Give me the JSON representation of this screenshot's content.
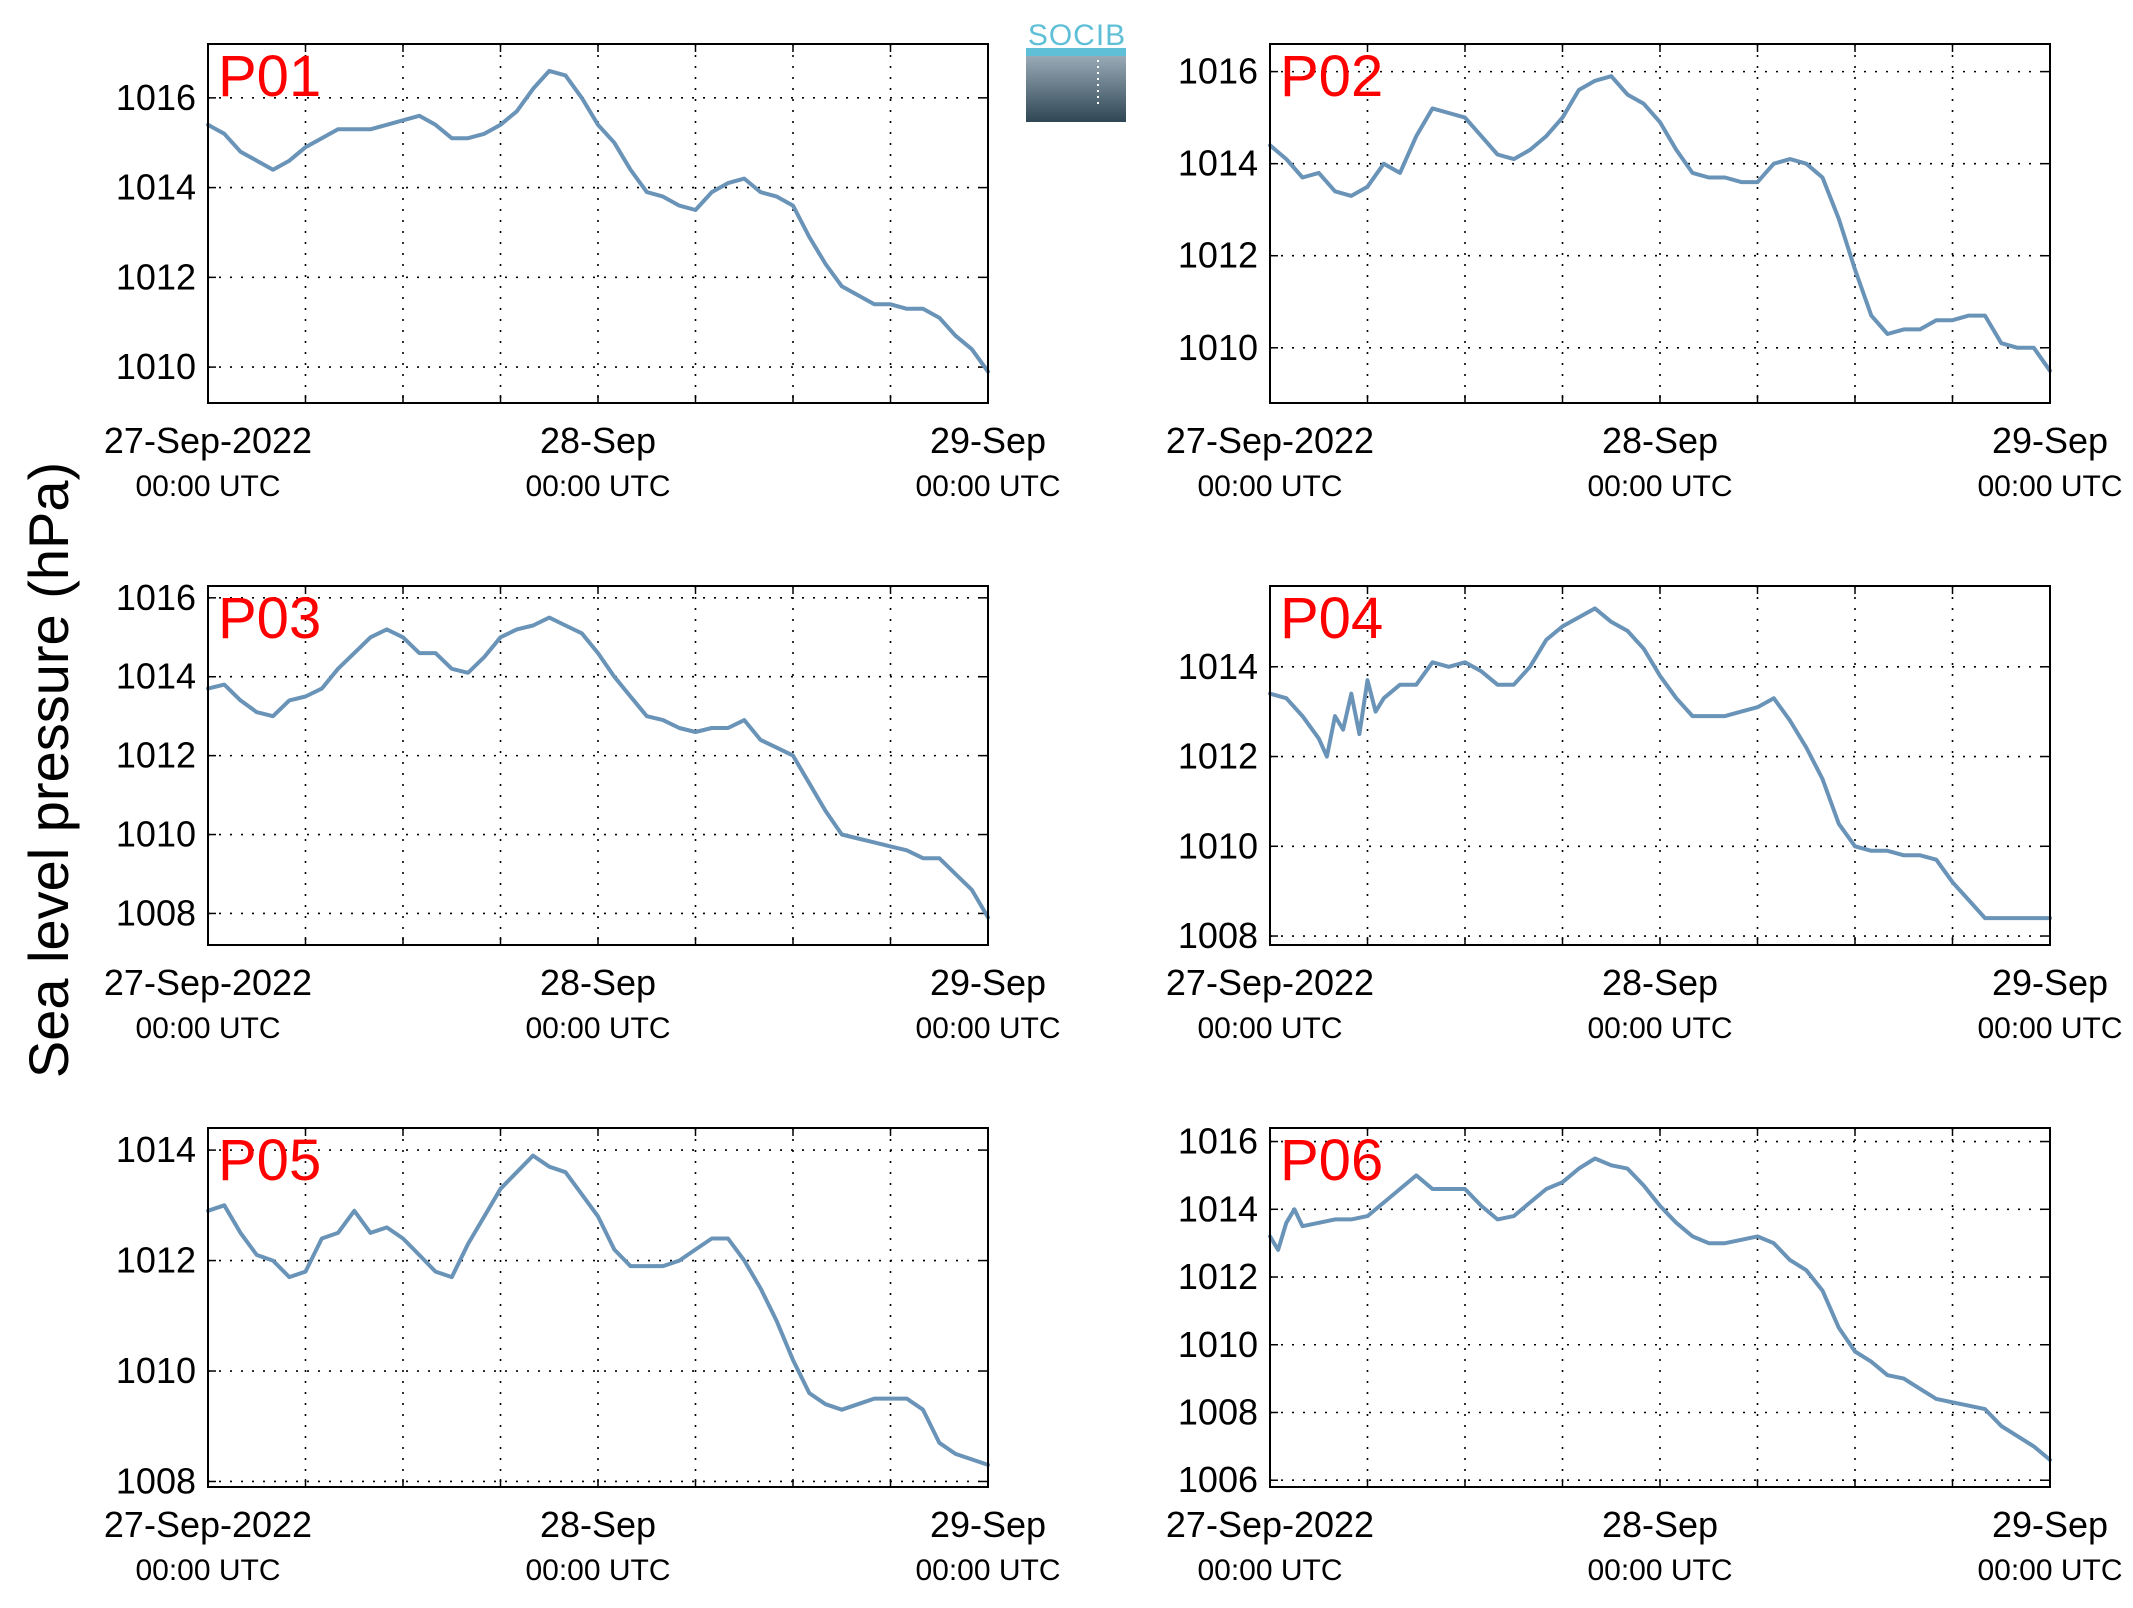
{
  "figure": {
    "ylabel": "Sea level pressure (hPa)",
    "logo_text": "SOCIB",
    "line_color": "#6a93b8",
    "label_color": "#ff0000"
  },
  "chart_data": [
    {
      "type": "line",
      "name": "P01",
      "x_ticks": [
        {
          "label": "27-Sep-2022",
          "sub": "00:00 UTC"
        },
        {
          "label": "28-Sep",
          "sub": "00:00 UTC"
        },
        {
          "label": "29-Sep",
          "sub": "00:00 UTC"
        }
      ],
      "xlim_hours": [
        0,
        48
      ],
      "ylim": [
        1009.2,
        1017.2
      ],
      "yticks": [
        1010,
        1012,
        1014,
        1016
      ],
      "grid": true,
      "x": [
        0,
        1,
        2,
        3,
        4,
        5,
        6,
        7,
        8,
        9,
        10,
        11,
        12,
        13,
        14,
        15,
        16,
        17,
        18,
        19,
        20,
        21,
        22,
        23,
        24,
        25,
        26,
        27,
        28,
        29,
        30,
        31,
        32,
        33,
        34,
        35,
        36,
        37,
        38,
        39,
        40,
        41,
        42,
        43,
        44,
        45,
        46,
        47,
        48
      ],
      "values": [
        1015.4,
        1015.2,
        1014.8,
        1014.6,
        1014.4,
        1014.6,
        1014.9,
        1015.1,
        1015.3,
        1015.3,
        1015.3,
        1015.4,
        1015.5,
        1015.6,
        1015.4,
        1015.1,
        1015.1,
        1015.2,
        1015.4,
        1015.7,
        1016.2,
        1016.6,
        1016.5,
        1016.0,
        1015.4,
        1015.0,
        1014.4,
        1013.9,
        1013.8,
        1013.6,
        1013.5,
        1013.9,
        1014.1,
        1014.2,
        1013.9,
        1013.8,
        1013.6,
        1012.9,
        1012.3,
        1011.8,
        1011.6,
        1011.4,
        1011.4,
        1011.3,
        1011.3,
        1011.1,
        1010.7,
        1010.4,
        1009.9
      ]
    },
    {
      "type": "line",
      "name": "P02",
      "x_ticks": [
        {
          "label": "27-Sep-2022",
          "sub": "00:00 UTC"
        },
        {
          "label": "28-Sep",
          "sub": "00:00 UTC"
        },
        {
          "label": "29-Sep",
          "sub": "00:00 UTC"
        }
      ],
      "xlim_hours": [
        0,
        48
      ],
      "ylim": [
        1008.8,
        1016.6
      ],
      "yticks": [
        1010,
        1012,
        1014,
        1016
      ],
      "grid": true,
      "x": [
        0,
        1,
        2,
        3,
        4,
        5,
        6,
        7,
        8,
        9,
        10,
        11,
        12,
        13,
        14,
        15,
        16,
        17,
        18,
        19,
        20,
        21,
        22,
        23,
        24,
        25,
        26,
        27,
        28,
        29,
        30,
        31,
        32,
        33,
        34,
        35,
        36,
        37,
        38,
        39,
        40,
        41,
        42,
        43,
        44,
        45,
        46,
        47,
        48
      ],
      "values": [
        1014.4,
        1014.1,
        1013.7,
        1013.8,
        1013.4,
        1013.3,
        1013.5,
        1014.0,
        1013.8,
        1014.6,
        1015.2,
        1015.1,
        1015.0,
        1014.6,
        1014.2,
        1014.1,
        1014.3,
        1014.6,
        1015.0,
        1015.6,
        1015.8,
        1015.9,
        1015.5,
        1015.3,
        1014.9,
        1014.3,
        1013.8,
        1013.7,
        1013.7,
        1013.6,
        1013.6,
        1014.0,
        1014.1,
        1014.0,
        1013.7,
        1012.8,
        1011.7,
        1010.7,
        1010.3,
        1010.4,
        1010.4,
        1010.6,
        1010.6,
        1010.7,
        1010.7,
        1010.1,
        1010.0,
        1010.0,
        1009.5
      ]
    },
    {
      "type": "line",
      "name": "P03",
      "x_ticks": [
        {
          "label": "27-Sep-2022",
          "sub": "00:00 UTC"
        },
        {
          "label": "28-Sep",
          "sub": "00:00 UTC"
        },
        {
          "label": "29-Sep",
          "sub": "00:00 UTC"
        }
      ],
      "xlim_hours": [
        0,
        48
      ],
      "ylim": [
        1007.2,
        1016.3
      ],
      "yticks": [
        1008,
        1010,
        1012,
        1014,
        1016
      ],
      "grid": true,
      "x": [
        0,
        1,
        2,
        3,
        4,
        5,
        6,
        7,
        8,
        9,
        10,
        11,
        12,
        13,
        14,
        15,
        16,
        17,
        18,
        19,
        20,
        21,
        22,
        23,
        24,
        25,
        26,
        27,
        28,
        29,
        30,
        31,
        32,
        33,
        34,
        35,
        36,
        37,
        38,
        39,
        40,
        41,
        42,
        43,
        44,
        45,
        46,
        47,
        48
      ],
      "values": [
        1013.7,
        1013.8,
        1013.4,
        1013.1,
        1013.0,
        1013.4,
        1013.5,
        1013.7,
        1014.2,
        1014.6,
        1015.0,
        1015.2,
        1015.0,
        1014.6,
        1014.6,
        1014.2,
        1014.1,
        1014.5,
        1015.0,
        1015.2,
        1015.3,
        1015.5,
        1015.3,
        1015.1,
        1014.6,
        1014.0,
        1013.5,
        1013.0,
        1012.9,
        1012.7,
        1012.6,
        1012.7,
        1012.7,
        1012.9,
        1012.4,
        1012.2,
        1012.0,
        1011.3,
        1010.6,
        1010.0,
        1009.9,
        1009.8,
        1009.7,
        1009.6,
        1009.4,
        1009.4,
        1009.0,
        1008.6,
        1007.9
      ]
    },
    {
      "type": "line",
      "name": "P04",
      "x_ticks": [
        {
          "label": "27-Sep-2022",
          "sub": "00:00 UTC"
        },
        {
          "label": "28-Sep",
          "sub": "00:00 UTC"
        },
        {
          "label": "29-Sep",
          "sub": "00:00 UTC"
        }
      ],
      "xlim_hours": [
        0,
        48
      ],
      "ylim": [
        1007.8,
        1015.8
      ],
      "yticks": [
        1008,
        1010,
        1012,
        1014
      ],
      "grid": true,
      "x": [
        0,
        1,
        2,
        3,
        3.5,
        4,
        4.5,
        5,
        5.5,
        6,
        6.5,
        7,
        8,
        9,
        10,
        11,
        12,
        13,
        14,
        15,
        16,
        17,
        18,
        19,
        20,
        21,
        22,
        23,
        24,
        25,
        26,
        27,
        28,
        29,
        30,
        31,
        32,
        33,
        34,
        35,
        36,
        37,
        38,
        39,
        40,
        41,
        42,
        43,
        44,
        45,
        46,
        47,
        48
      ],
      "values": [
        1013.4,
        1013.3,
        1012.9,
        1012.4,
        1012.0,
        1012.9,
        1012.6,
        1013.4,
        1012.5,
        1013.7,
        1013.0,
        1013.3,
        1013.6,
        1013.6,
        1014.1,
        1014.0,
        1014.1,
        1013.9,
        1013.6,
        1013.6,
        1014.0,
        1014.6,
        1014.9,
        1015.1,
        1015.3,
        1015.0,
        1014.8,
        1014.4,
        1013.8,
        1013.3,
        1012.9,
        1012.9,
        1012.9,
        1013.0,
        1013.1,
        1013.3,
        1012.8,
        1012.2,
        1011.5,
        1010.5,
        1010.0,
        1009.9,
        1009.9,
        1009.8,
        1009.8,
        1009.7,
        1009.2,
        1008.8,
        1008.4,
        1008.4,
        1008.4,
        1008.4,
        1008.4
      ]
    },
    {
      "type": "line",
      "name": "P05",
      "x_ticks": [
        {
          "label": "27-Sep-2022",
          "sub": "00:00 UTC"
        },
        {
          "label": "28-Sep",
          "sub": "00:00 UTC"
        },
        {
          "label": "29-Sep",
          "sub": "00:00 UTC"
        }
      ],
      "xlim_hours": [
        0,
        48
      ],
      "ylim": [
        1007.9,
        1014.4
      ],
      "yticks": [
        1008,
        1010,
        1012,
        1014
      ],
      "grid": true,
      "x": [
        0,
        1,
        2,
        3,
        4,
        5,
        6,
        7,
        8,
        9,
        10,
        11,
        12,
        13,
        14,
        15,
        16,
        17,
        18,
        19,
        20,
        21,
        22,
        23,
        24,
        25,
        26,
        27,
        28,
        29,
        30,
        31,
        32,
        33,
        34,
        35,
        36,
        37,
        38,
        39,
        40,
        41,
        42,
        43,
        44,
        45,
        46,
        47,
        48
      ],
      "values": [
        1012.9,
        1013.0,
        1012.5,
        1012.1,
        1012.0,
        1011.7,
        1011.8,
        1012.4,
        1012.5,
        1012.9,
        1012.5,
        1012.6,
        1012.4,
        1012.1,
        1011.8,
        1011.7,
        1012.3,
        1012.8,
        1013.3,
        1013.6,
        1013.9,
        1013.7,
        1013.6,
        1013.2,
        1012.8,
        1012.2,
        1011.9,
        1011.9,
        1011.9,
        1012.0,
        1012.2,
        1012.4,
        1012.4,
        1012.0,
        1011.5,
        1010.9,
        1010.2,
        1009.6,
        1009.4,
        1009.3,
        1009.4,
        1009.5,
        1009.5,
        1009.5,
        1009.3,
        1008.7,
        1008.5,
        1008.4,
        1008.3
      ]
    },
    {
      "type": "line",
      "name": "P06",
      "x_ticks": [
        {
          "label": "27-Sep-2022",
          "sub": "00:00 UTC"
        },
        {
          "label": "28-Sep",
          "sub": "00:00 UTC"
        },
        {
          "label": "29-Sep",
          "sub": "00:00 UTC"
        }
      ],
      "xlim_hours": [
        0,
        48
      ],
      "ylim": [
        1005.8,
        1016.4
      ],
      "yticks": [
        1006,
        1008,
        1010,
        1012,
        1014,
        1016
      ],
      "grid": true,
      "x": [
        0,
        0.5,
        1,
        1.5,
        2,
        3,
        4,
        5,
        6,
        7,
        8,
        9,
        10,
        11,
        12,
        13,
        14,
        15,
        16,
        17,
        18,
        19,
        20,
        21,
        22,
        23,
        24,
        25,
        26,
        27,
        28,
        29,
        30,
        31,
        32,
        33,
        34,
        35,
        36,
        37,
        38,
        39,
        40,
        41,
        42,
        43,
        44,
        45,
        46,
        47,
        48
      ],
      "values": [
        1013.2,
        1012.8,
        1013.6,
        1014.0,
        1013.5,
        1013.6,
        1013.7,
        1013.7,
        1013.8,
        1014.2,
        1014.6,
        1015.0,
        1014.6,
        1014.6,
        1014.6,
        1014.1,
        1013.7,
        1013.8,
        1014.2,
        1014.6,
        1014.8,
        1015.2,
        1015.5,
        1015.3,
        1015.2,
        1014.7,
        1014.1,
        1013.6,
        1013.2,
        1013.0,
        1013.0,
        1013.1,
        1013.2,
        1013.0,
        1012.5,
        1012.2,
        1011.6,
        1010.5,
        1009.8,
        1009.5,
        1009.1,
        1009.0,
        1008.7,
        1008.4,
        1008.3,
        1008.2,
        1008.1,
        1007.6,
        1007.3,
        1007.0,
        1006.6
      ]
    }
  ]
}
